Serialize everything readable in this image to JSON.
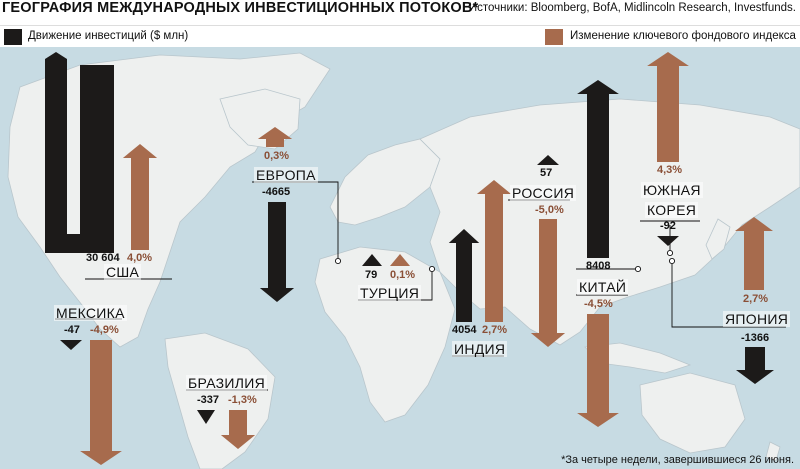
{
  "header": {
    "title": "ГЕОГРАФИЯ МЕЖДУНАРОДНЫХ ИНВЕСТИЦИОННЫХ ПОТОКОВ*",
    "sources": "Источники: Bloomberg, BofA, Midlincoln Research, Investfunds."
  },
  "legend": {
    "flows_label": "Движение инвестиций ($ млн)",
    "index_label": "Изменение ключевого фондового индекса"
  },
  "colors": {
    "flow": "#1c1a19",
    "index": "#a76b4d",
    "index_text": "#8a4f36",
    "ocean": "#c7dbe3",
    "land": "#eef0ef"
  },
  "countries": {
    "usa": {
      "name": "США",
      "flow": "30 604",
      "index": "4,0%"
    },
    "mexico": {
      "name": "МЕКСИКА",
      "flow": "-47",
      "index": "-4,9%"
    },
    "brazil": {
      "name": "БРАЗИЛИЯ",
      "flow": "-337",
      "index": "-1,3%"
    },
    "europe": {
      "name": "ЕВРОПА",
      "flow": "-4665",
      "index": "0,3%"
    },
    "turkey": {
      "name": "ТУРЦИЯ",
      "flow": "79",
      "index": "0,1%"
    },
    "russia": {
      "name": "РОССИЯ",
      "flow": "57",
      "index": "-5,0%"
    },
    "india": {
      "name": "ИНДИЯ",
      "flow": "4054",
      "index": "2,7%"
    },
    "china": {
      "name": "КИТАЙ",
      "flow": "8408",
      "index": "-4,5%"
    },
    "south_korea": {
      "name_line1": "ЮЖНАЯ",
      "name_line2": "КОРЕЯ",
      "flow": "-92",
      "index": "4,3%"
    },
    "japan": {
      "name": "ЯПОНИЯ",
      "flow": "-1366",
      "index": "2,7%"
    }
  },
  "footnote": "*За четыре недели, завершившиеся 26 июня."
}
